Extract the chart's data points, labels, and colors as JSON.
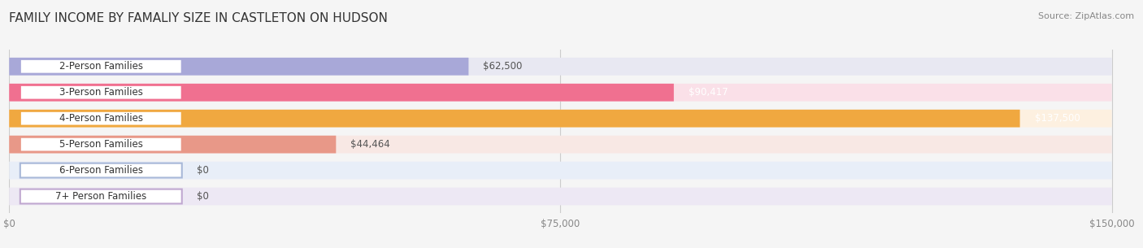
{
  "title": "FAMILY INCOME BY FAMALIY SIZE IN CASTLETON ON HUDSON",
  "source": "Source: ZipAtlas.com",
  "categories": [
    "2-Person Families",
    "3-Person Families",
    "4-Person Families",
    "5-Person Families",
    "6-Person Families",
    "7+ Person Families"
  ],
  "values": [
    62500,
    90417,
    137500,
    44464,
    0,
    0
  ],
  "bar_colors": [
    "#a8a8d8",
    "#f07090",
    "#f0a840",
    "#e89888",
    "#a8b8d8",
    "#c0a8d0"
  ],
  "bar_bg_colors": [
    "#e8e8f2",
    "#fae0e8",
    "#fdf0e0",
    "#f8e8e4",
    "#e8eef8",
    "#ede8f4"
  ],
  "label_border_colors": [
    "#a8a8d8",
    "#f07090",
    "#f0a840",
    "#e89888",
    "#a8b8d8",
    "#c0a8d0"
  ],
  "value_colors": [
    "#555555",
    "#ffffff",
    "#ffffff",
    "#555555",
    "#555555",
    "#555555"
  ],
  "xlim": [
    0,
    150000
  ],
  "xtick_labels": [
    "$0",
    "$75,000",
    "$150,000"
  ],
  "background_color": "#f5f5f5",
  "bar_height": 0.68,
  "title_fontsize": 11,
  "label_fontsize": 8.5,
  "value_fontsize": 8.5
}
